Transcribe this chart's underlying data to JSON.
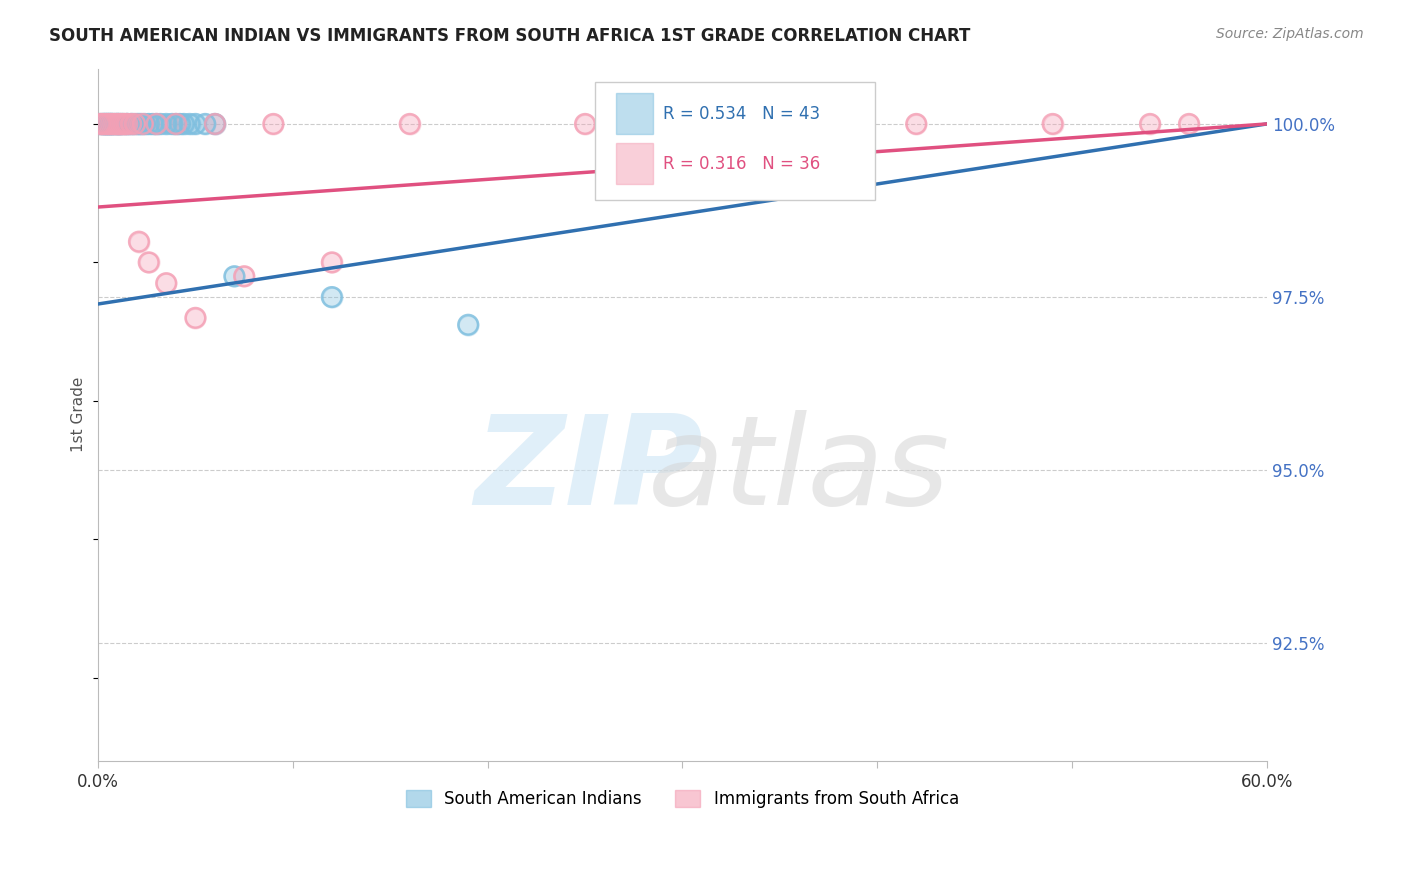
{
  "title": "SOUTH AMERICAN INDIAN VS IMMIGRANTS FROM SOUTH AFRICA 1ST GRADE CORRELATION CHART",
  "source": "Source: ZipAtlas.com",
  "ylabel": "1st Grade",
  "ylabel_ticks": [
    "100.0%",
    "97.5%",
    "95.0%",
    "92.5%"
  ],
  "ylabel_values": [
    1.0,
    0.975,
    0.95,
    0.925
  ],
  "xmin": 0.0,
  "xmax": 0.6,
  "ymin": 0.908,
  "ymax": 1.008,
  "legend_blue_label": "South American Indians",
  "legend_pink_label": "Immigrants from South Africa",
  "r_blue": 0.534,
  "n_blue": 43,
  "r_pink": 0.316,
  "n_pink": 36,
  "blue_color": "#7fbfdf",
  "pink_color": "#f4a0b5",
  "blue_line_color": "#3070b0",
  "pink_line_color": "#e05080",
  "blue_x": [
    0.001,
    0.002,
    0.003,
    0.003,
    0.004,
    0.004,
    0.005,
    0.005,
    0.006,
    0.006,
    0.007,
    0.007,
    0.008,
    0.009,
    0.01,
    0.01,
    0.011,
    0.012,
    0.013,
    0.015,
    0.015,
    0.017,
    0.018,
    0.02,
    0.021,
    0.022,
    0.024,
    0.026,
    0.028,
    0.03,
    0.032,
    0.035,
    0.038,
    0.04,
    0.042,
    0.044,
    0.047,
    0.05,
    0.055,
    0.06,
    0.07,
    0.12,
    0.19
  ],
  "blue_y": [
    1.0,
    1.0,
    1.0,
    1.0,
    1.0,
    1.0,
    1.0,
    1.0,
    1.0,
    1.0,
    1.0,
    1.0,
    1.0,
    1.0,
    1.0,
    1.0,
    1.0,
    1.0,
    1.0,
    1.0,
    1.0,
    1.0,
    1.0,
    1.0,
    1.0,
    1.0,
    1.0,
    1.0,
    1.0,
    1.0,
    1.0,
    1.0,
    1.0,
    1.0,
    1.0,
    1.0,
    1.0,
    1.0,
    1.0,
    1.0,
    0.978,
    0.975,
    0.971
  ],
  "pink_x": [
    0.001,
    0.002,
    0.003,
    0.004,
    0.005,
    0.006,
    0.007,
    0.008,
    0.009,
    0.01,
    0.011,
    0.012,
    0.013,
    0.014,
    0.015,
    0.017,
    0.019,
    0.021,
    0.023,
    0.026,
    0.03,
    0.035,
    0.04,
    0.05,
    0.06,
    0.075,
    0.09,
    0.12,
    0.16,
    0.25,
    0.31,
    0.37,
    0.42,
    0.49,
    0.54,
    0.56
  ],
  "pink_y": [
    1.0,
    1.0,
    1.0,
    1.0,
    1.0,
    1.0,
    1.0,
    1.0,
    1.0,
    1.0,
    1.0,
    1.0,
    1.0,
    1.0,
    1.0,
    1.0,
    1.0,
    0.983,
    1.0,
    0.98,
    1.0,
    0.977,
    1.0,
    0.972,
    1.0,
    0.978,
    1.0,
    0.98,
    1.0,
    1.0,
    1.0,
    1.0,
    1.0,
    1.0,
    1.0,
    1.0
  ],
  "blue_trendline_x": [
    0.0,
    0.6
  ],
  "blue_trendline_y": [
    0.974,
    1.0
  ],
  "pink_trendline_x": [
    0.0,
    0.6
  ],
  "pink_trendline_y": [
    0.988,
    1.0
  ]
}
